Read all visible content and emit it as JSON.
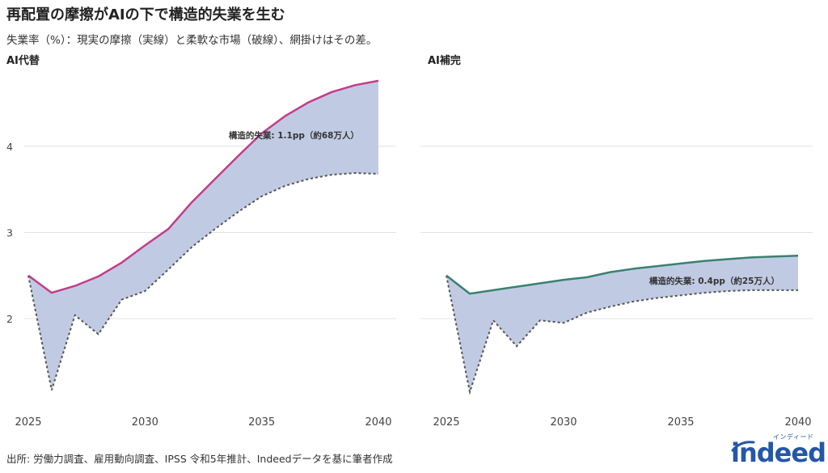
{
  "header": {
    "title": "再配置の摩擦がAIの下で構造的失業を生む",
    "subtitle": "失業率（%）：現実の摩擦（実線）と柔軟な市場（破線）、網掛けはその差。"
  },
  "footer": {
    "source": "出所: 労働力調査、雇用動向調査、IPSS 令和5年推計、Indeedデータを基に筆者作成"
  },
  "logo": {
    "wordmark": "indeed",
    "superscript": "インディード",
    "color": "#2557a7"
  },
  "colors": {
    "fill": "#c0cbe3",
    "grid": "#e3e3e3",
    "dashed": "#555555",
    "panel1_line": "#c23d8a",
    "panel2_line": "#3a8170"
  },
  "chart_data": [
    {
      "type": "area",
      "title": "AI代替",
      "x": [
        2025,
        2026,
        2027,
        2028,
        2029,
        2030,
        2031,
        2032,
        2033,
        2034,
        2035,
        2036,
        2037,
        2038,
        2039,
        2040
      ],
      "series": [
        {
          "style": "solid",
          "values": [
            2.5,
            2.3,
            2.38,
            2.49,
            2.65,
            2.85,
            3.04,
            3.35,
            3.62,
            3.89,
            4.15,
            4.35,
            4.51,
            4.63,
            4.71,
            4.76
          ]
        },
        {
          "style": "dashed",
          "values": [
            2.5,
            1.17,
            2.04,
            1.82,
            2.22,
            2.32,
            2.57,
            2.83,
            3.04,
            3.24,
            3.42,
            3.54,
            3.62,
            3.67,
            3.69,
            3.68
          ]
        }
      ],
      "annotation": "構造的失業: 1.1pp（約68万人）",
      "xticks": [
        2025,
        2030,
        2035,
        2040
      ],
      "yticks": [
        2,
        3,
        4
      ],
      "xlim": [
        2025,
        2040
      ],
      "ylim": [
        1.1,
        4.9
      ],
      "grid": true
    },
    {
      "type": "area",
      "title": "AI補完",
      "x": [
        2025,
        2026,
        2027,
        2028,
        2029,
        2030,
        2031,
        2032,
        2033,
        2034,
        2035,
        2036,
        2037,
        2038,
        2039,
        2040
      ],
      "series": [
        {
          "style": "solid",
          "values": [
            2.5,
            2.29,
            2.33,
            2.37,
            2.41,
            2.45,
            2.48,
            2.54,
            2.58,
            2.61,
            2.64,
            2.67,
            2.69,
            2.71,
            2.72,
            2.73
          ]
        },
        {
          "style": "dashed",
          "values": [
            2.5,
            1.15,
            1.98,
            1.68,
            1.98,
            1.95,
            2.07,
            2.14,
            2.2,
            2.24,
            2.27,
            2.3,
            2.32,
            2.33,
            2.33,
            2.33
          ]
        }
      ],
      "annotation": "構造的失業: 0.4pp（約25万人）",
      "xticks": [
        2025,
        2030,
        2035,
        2040
      ],
      "yticks": [
        2,
        3,
        4
      ],
      "xlim": [
        2025,
        2040
      ],
      "ylim": [
        1.1,
        4.9
      ],
      "grid": true
    }
  ]
}
